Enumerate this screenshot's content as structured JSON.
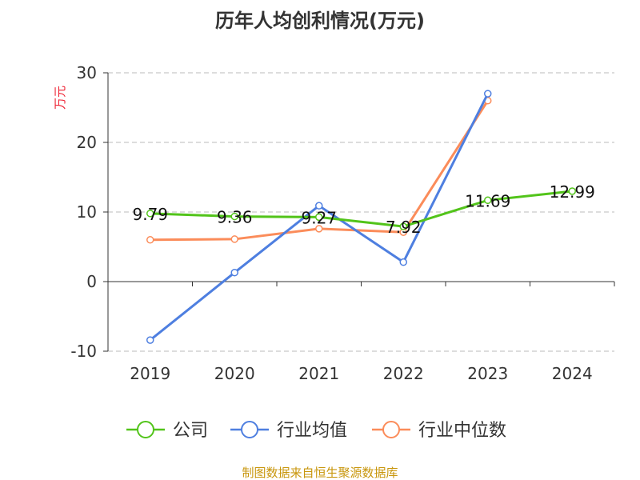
{
  "chart_data": {
    "type": "line",
    "title": "历年人均创利情况(万元)",
    "ylabel": "万元",
    "ylim": [
      -10,
      30
    ],
    "yticks": [
      -10,
      0,
      10,
      20,
      30
    ],
    "categories": [
      "2019",
      "2020",
      "2021",
      "2022",
      "2023",
      "2024"
    ],
    "series": [
      {
        "name": "公司",
        "color": "#52c41a",
        "values": [
          9.79,
          9.36,
          9.27,
          7.92,
          11.69,
          12.99
        ],
        "labels": [
          "9.79",
          "9.36",
          "9.27",
          "7.92",
          "11.69",
          "12.99"
        ]
      },
      {
        "name": "行业均值",
        "color": "#4e7fe0",
        "values": [
          -8.4,
          1.3,
          10.9,
          2.8,
          27.0,
          null
        ]
      },
      {
        "name": "行业中位数",
        "color": "#fb8c5a",
        "values": [
          6.0,
          6.1,
          7.6,
          7.1,
          26.0,
          null
        ]
      }
    ],
    "grid": true,
    "legend": "bottom"
  },
  "footer": "制图数据来自恒生聚源数据库"
}
